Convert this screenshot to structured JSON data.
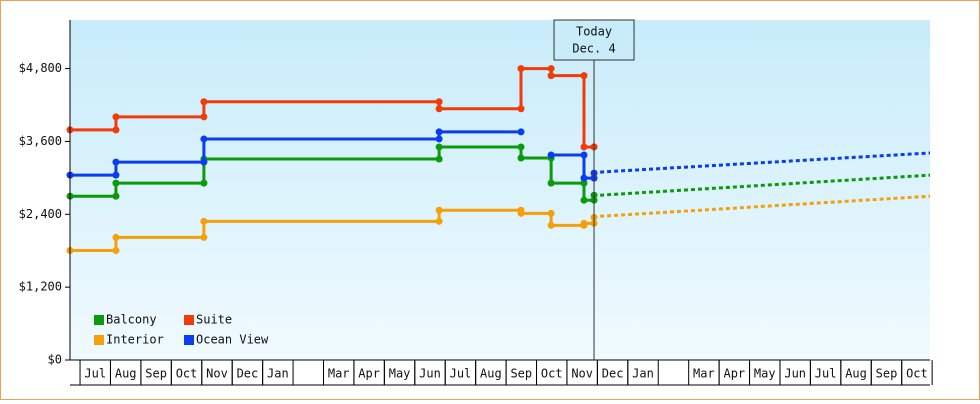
{
  "chart_data": {
    "type": "step-line",
    "xlim": [
      -0.33,
      27.93
    ],
    "xticks": [
      {
        "value": 0,
        "label": "Jul"
      },
      {
        "value": 1,
        "label": "Aug"
      },
      {
        "value": 2,
        "label": "Sep"
      },
      {
        "value": 3,
        "label": "Oct"
      },
      {
        "value": 4,
        "label": "Nov"
      },
      {
        "value": 5,
        "label": "Dec"
      },
      {
        "value": 6,
        "label": "Jan"
      },
      {
        "value": 8,
        "label": "Mar"
      },
      {
        "value": 9,
        "label": "Apr"
      },
      {
        "value": 10,
        "label": "May"
      },
      {
        "value": 11,
        "label": "Jun"
      },
      {
        "value": 12,
        "label": "Jul"
      },
      {
        "value": 13,
        "label": "Aug"
      },
      {
        "value": 14,
        "label": "Sep"
      },
      {
        "value": 15,
        "label": "Oct"
      },
      {
        "value": 16,
        "label": "Nov"
      },
      {
        "value": 17,
        "label": "Dec"
      },
      {
        "value": 18,
        "label": "Jan"
      },
      {
        "value": 20,
        "label": "Mar"
      },
      {
        "value": 21,
        "label": "Apr"
      },
      {
        "value": 22,
        "label": "May"
      },
      {
        "value": 23,
        "label": "Jun"
      },
      {
        "value": 24,
        "label": "Jul"
      },
      {
        "value": 25,
        "label": "Aug"
      },
      {
        "value": 26,
        "label": "Sep"
      },
      {
        "value": 27,
        "label": "Oct"
      }
    ],
    "ylim": [
      0,
      5600
    ],
    "yticks": [
      {
        "value": 0,
        "label": "$0"
      },
      {
        "value": 1200,
        "label": "$1,200"
      },
      {
        "value": 2400,
        "label": "$2,400"
      },
      {
        "value": 3600,
        "label": "$3,600"
      },
      {
        "value": 4800,
        "label": "$4,800"
      }
    ],
    "legend": "lower left",
    "today": {
      "x": 16.89,
      "label": "Today",
      "date": "Dec. 4"
    },
    "series": [
      {
        "name": "Balcony",
        "color": "#0a9a0a",
        "x": [
          -0.33,
          1.18,
          4.07,
          11.8,
          14.49,
          15.48,
          16.56,
          16.89
        ],
        "values": [
          2698,
          2913,
          3310,
          3509,
          3327,
          2913,
          2632,
          2714
        ],
        "forecast": {
          "x": [
            17.09,
            27.93
          ],
          "values": [
            2714,
            3045
          ]
        }
      },
      {
        "name": "Suite",
        "color": "#f03c0a",
        "x": [
          -0.33,
          1.18,
          4.07,
          11.8,
          14.49,
          15.48,
          16.56,
          16.89
        ],
        "values": [
          3790,
          4005,
          4254,
          4138,
          4800,
          4684,
          3509,
          3509
        ]
      },
      {
        "name": "Interior",
        "color": "#f5a00a",
        "x": [
          -0.33,
          1.18,
          4.07,
          11.8,
          14.49,
          15.48,
          16.56,
          16.89
        ],
        "values": [
          1804,
          2019,
          2284,
          2466,
          2416,
          2218,
          2251,
          2350
        ],
        "forecast": {
          "x": [
            17.09,
            27.93
          ],
          "values": [
            2367,
            2698
          ]
        }
      },
      {
        "name": "Ocean View",
        "color": "#0a3cf0",
        "x": [
          -0.33,
          1.18,
          4.07,
          11.8,
          14.49,
          15.48,
          16.56,
          16.89
        ],
        "values": [
          3045,
          3260,
          3641,
          3757,
          null,
          3376,
          2996,
          3078
        ],
        "forecast": {
          "x": [
            17.09,
            27.93
          ],
          "values": [
            3095,
            3410
          ]
        }
      }
    ]
  }
}
